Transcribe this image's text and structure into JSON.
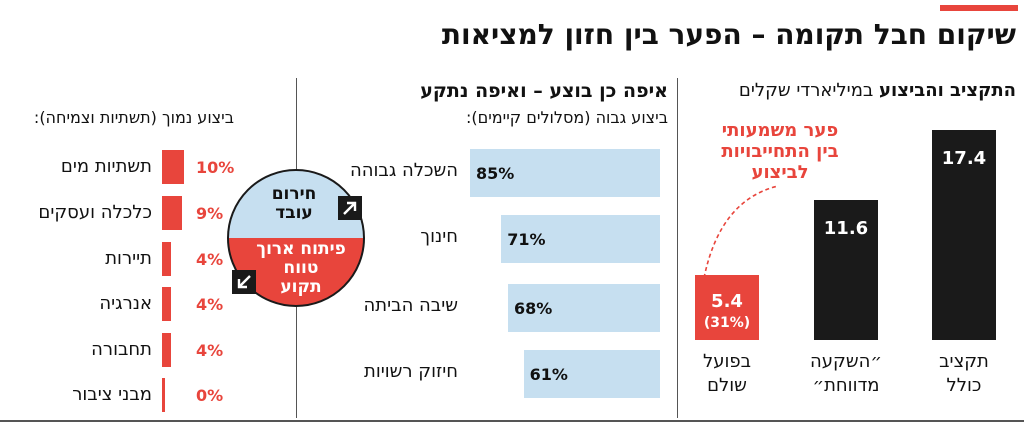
{
  "title": "שיקום חבל תקומה – הפער בין חזון למציאות",
  "colors": {
    "accent": "#e8453c",
    "dark": "#1a1a1a",
    "light_blue": "#c6dff0"
  },
  "budget_panel": {
    "title_bold": "התקציב והביצוע",
    "title_rest": " במיליארדי שקלים",
    "gap_note": [
      "פער משמעותי",
      "בין התחייבויות",
      "לביצוע"
    ]
  },
  "high_panel": {
    "title": "איפה כן בוצע – ואיפה נתקע",
    "subtitle": "ביצוע גבוה (מסלולים קיימים):"
  },
  "low_panel": {
    "subtitle": "ביצוע נמוך (תשתיות וצמיחה):"
  },
  "legend_circle": {
    "top_text": [
      "חירום",
      "עובד"
    ],
    "bottom_text": [
      "פיתוח ארוך",
      "טווח",
      "תקוע"
    ],
    "top_icon": "arrow-up-right-icon",
    "bottom_icon": "arrow-down-left-icon"
  },
  "chart_data": [
    {
      "type": "bar",
      "title": "התקציב והביצוע במיליארדי שקלים",
      "categories": [
        [
          "תקציב",
          "כולל"
        ],
        [
          "״השקעה",
          "מדווחת״"
        ],
        [
          "בפועל",
          "שולם"
        ]
      ],
      "values": [
        17.4,
        11.6,
        5.4
      ],
      "value_labels": [
        "17.4",
        "11.6",
        "5.4"
      ],
      "extra_labels": [
        "",
        "",
        "(31%)"
      ],
      "units": "מיליארדי שקלים"
    },
    {
      "type": "bar",
      "orientation": "horizontal",
      "title": "איפה כן בוצע – ואיפה נתקע",
      "subtitle": "ביצוע גבוה (מסלולים קיימים):",
      "categories": [
        "השכלה גבוהה",
        "חינוך",
        "שיבה הביתה",
        "חיזוק רשויות"
      ],
      "values": [
        85,
        71,
        68,
        61
      ],
      "value_labels": [
        "85%",
        "71%",
        "68%",
        "61%"
      ],
      "units": "%"
    },
    {
      "type": "bar",
      "orientation": "horizontal",
      "subtitle": "ביצוע נמוך (תשתיות וצמיחה):",
      "categories": [
        "תשתיות מים",
        "כלכלה ועסקים",
        "תיירות",
        "אנרגיה",
        "תחבורה",
        "מבני ציבור"
      ],
      "values": [
        10,
        9,
        4,
        4,
        4,
        0
      ],
      "value_labels": [
        "10%",
        "9%",
        "4%",
        "4%",
        "4%",
        "0%"
      ],
      "units": "%"
    }
  ]
}
